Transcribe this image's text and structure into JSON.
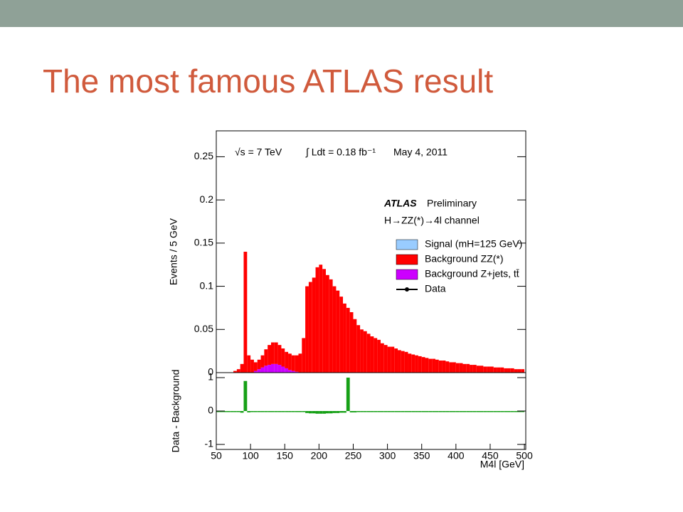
{
  "slide_title": "The most famous ATLAS result",
  "chart_data": [
    {
      "type": "histogram",
      "ylabel": "Events / 5 GeV",
      "annotations": [
        "√s = 7 TeV",
        "∫ Ldt = 0.18 fb⁻¹",
        "May  4, 2011",
        "ATLAS",
        "Preliminary",
        "H→ZZ(*)→4l channel"
      ],
      "legend": [
        {
          "label": "Signal (mH=125 GeV)",
          "color": "#99ccff"
        },
        {
          "label": "Background ZZ(*)",
          "color": "#ff0000"
        },
        {
          "label": "Background Z+jets, tt̄",
          "color": "#cc00ff"
        },
        {
          "label": "Data",
          "color": "#000000"
        }
      ],
      "bins": [
        50,
        55,
        60,
        65,
        70,
        75,
        80,
        85,
        90,
        95,
        100,
        105,
        110,
        115,
        120,
        125,
        130,
        135,
        140,
        145,
        150,
        155,
        160,
        165,
        170,
        175,
        180,
        185,
        190,
        195,
        200,
        205,
        210,
        215,
        220,
        225,
        230,
        235,
        240,
        245,
        250,
        255,
        260,
        265,
        270,
        275,
        280,
        285,
        290,
        295,
        300,
        305,
        310,
        315,
        320,
        325,
        330,
        335,
        340,
        345,
        350,
        355,
        360,
        365,
        370,
        375,
        380,
        385,
        390,
        395,
        400,
        405,
        410,
        415,
        420,
        425,
        430,
        435,
        440,
        445,
        450,
        455,
        460,
        465,
        470,
        475,
        480,
        485,
        490,
        495,
        500
      ],
      "series": [
        {
          "name": "Background Z+jets, tt̄",
          "color": "#cc00ff",
          "values": [
            0,
            0,
            0,
            0,
            0,
            0,
            0,
            0,
            0,
            0,
            0,
            0.002,
            0.004,
            0.006,
            0.008,
            0.009,
            0.01,
            0.01,
            0.009,
            0.007,
            0.005,
            0.003,
            0.002,
            0.001,
            0,
            0,
            0,
            0,
            0,
            0,
            0,
            0,
            0,
            0,
            0,
            0,
            0,
            0,
            0,
            0,
            0,
            0,
            0,
            0,
            0,
            0,
            0,
            0,
            0,
            0,
            0,
            0,
            0,
            0,
            0,
            0,
            0,
            0,
            0,
            0,
            0,
            0,
            0,
            0,
            0,
            0,
            0,
            0,
            0,
            0,
            0,
            0,
            0,
            0,
            0,
            0,
            0,
            0,
            0,
            0,
            0,
            0,
            0,
            0,
            0,
            0,
            0,
            0,
            0,
            0
          ]
        },
        {
          "name": "Background ZZ(*)",
          "color": "#ff0000",
          "values": [
            0,
            0,
            0,
            0,
            0,
            0.002,
            0.004,
            0.01,
            0.14,
            0.02,
            0.015,
            0.01,
            0.011,
            0.014,
            0.019,
            0.023,
            0.025,
            0.025,
            0.023,
            0.021,
            0.019,
            0.019,
            0.018,
            0.019,
            0.022,
            0.04,
            0.1,
            0.105,
            0.11,
            0.122,
            0.125,
            0.12,
            0.113,
            0.108,
            0.1,
            0.095,
            0.088,
            0.08,
            0.075,
            0.07,
            0.062,
            0.055,
            0.05,
            0.048,
            0.045,
            0.042,
            0.04,
            0.038,
            0.034,
            0.032,
            0.03,
            0.03,
            0.028,
            0.026,
            0.025,
            0.024,
            0.022,
            0.021,
            0.02,
            0.019,
            0.018,
            0.017,
            0.016,
            0.016,
            0.015,
            0.014,
            0.014,
            0.013,
            0.012,
            0.012,
            0.011,
            0.011,
            0.01,
            0.01,
            0.009,
            0.009,
            0.008,
            0.008,
            0.007,
            0.007,
            0.007,
            0.006,
            0.006,
            0.006,
            0.005,
            0.005,
            0.005,
            0.004,
            0.004,
            0.004
          ]
        }
      ],
      "xlim": [
        50,
        502
      ],
      "ylim": [
        0,
        0.28
      ],
      "yticks": [
        0,
        0.05,
        0.1,
        0.15,
        0.2,
        0.25
      ]
    },
    {
      "type": "histogram",
      "ylabel": "Data - Background",
      "xlabel": "M4l [GeV]",
      "color": "#16a016",
      "bins": [
        50,
        55,
        60,
        65,
        70,
        75,
        80,
        85,
        90,
        95,
        100,
        105,
        110,
        115,
        120,
        125,
        130,
        135,
        140,
        145,
        150,
        155,
        160,
        165,
        170,
        175,
        180,
        185,
        190,
        195,
        200,
        205,
        210,
        215,
        220,
        225,
        230,
        235,
        240,
        245,
        250,
        255,
        260,
        265,
        270,
        275,
        280,
        285,
        290,
        295,
        300,
        305,
        310,
        315,
        320,
        325,
        330,
        335,
        340,
        345,
        350,
        355,
        360,
        365,
        370,
        375,
        380,
        385,
        390,
        395,
        400,
        405,
        410,
        415,
        420,
        425,
        430,
        435,
        440,
        445,
        450,
        455,
        460,
        465,
        470,
        475,
        480,
        485,
        490,
        495,
        500
      ],
      "values": [
        0,
        0,
        0,
        0,
        0,
        0,
        0,
        -0.05,
        0.9,
        -0.04,
        -0.02,
        -0.01,
        -0.01,
        -0.02,
        -0.02,
        -0.02,
        -0.02,
        -0.02,
        -0.02,
        -0.02,
        -0.02,
        -0.02,
        -0.02,
        -0.02,
        -0.02,
        -0.03,
        -0.06,
        -0.07,
        -0.07,
        -0.08,
        -0.08,
        -0.08,
        -0.07,
        -0.07,
        -0.06,
        -0.06,
        -0.05,
        -0.05,
        1.0,
        -0.04,
        -0.04,
        -0.03,
        -0.03,
        -0.03,
        -0.03,
        -0.02,
        -0.02,
        -0.02,
        -0.02,
        -0.02,
        -0.02,
        -0.02,
        -0.02,
        -0.01,
        -0.01,
        -0.01,
        -0.01,
        -0.01,
        -0.01,
        -0.01,
        -0.01,
        -0.01,
        -0.01,
        -0.01,
        -0.01,
        -0.01,
        -0.01,
        -0.01,
        -0.01,
        -0.01,
        -0.01,
        -0.01,
        -0.01,
        -0.01,
        -0.01,
        -0.01,
        -0.01,
        -0.01,
        -0.01,
        -0.01,
        -0.01,
        -0.01,
        -0.01,
        -0.01,
        -0.01,
        -0.01,
        -0.01,
        -0.01,
        -0.01,
        -0.01
      ],
      "xlim": [
        50,
        502
      ],
      "ylim": [
        -1.15,
        1.15
      ],
      "yticks": [
        -1,
        0,
        1
      ],
      "xticks": [
        50,
        100,
        150,
        200,
        250,
        300,
        350,
        400,
        450,
        500
      ]
    }
  ]
}
